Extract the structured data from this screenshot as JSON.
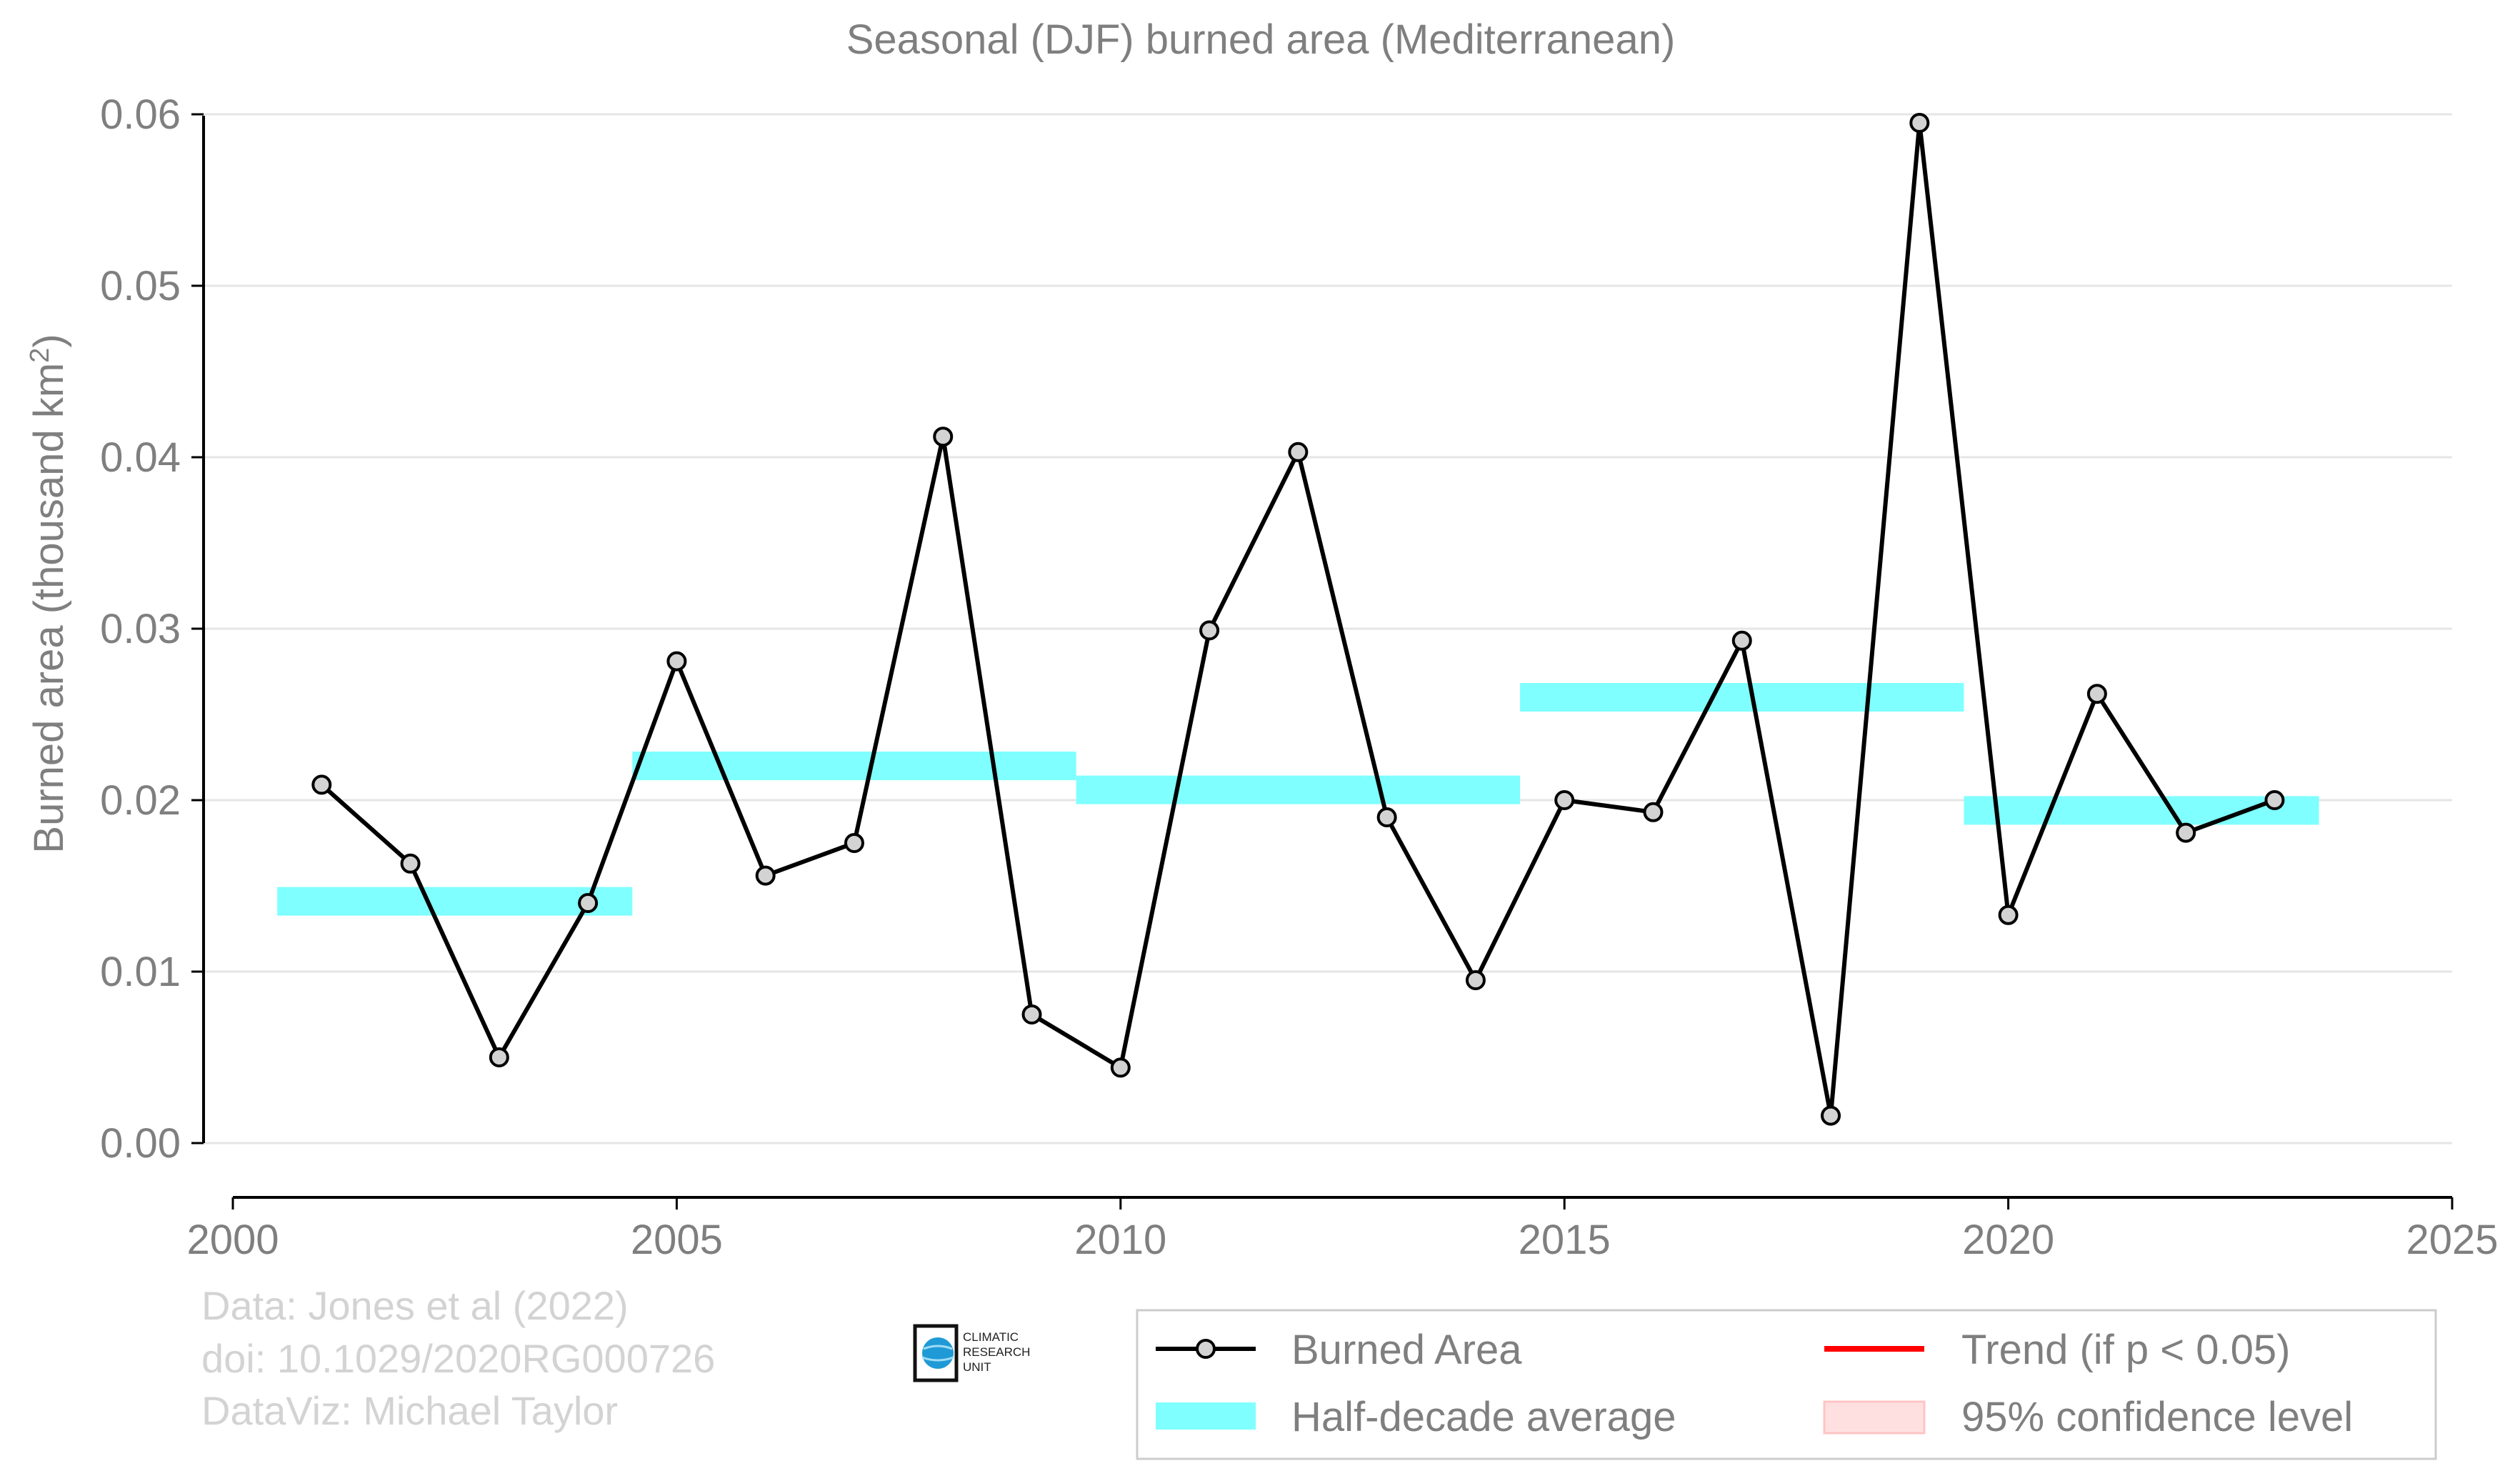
{
  "chart_data": {
    "type": "line",
    "title": "Seasonal (DJF) burned area (Mediterranean)",
    "ylabel": "Burned area (thousand km",
    "ylabel_sup": "2",
    "ylabel_close": ")",
    "xlabel": "",
    "xlim": [
      2000,
      2025
    ],
    "ylim": [
      -0.003,
      0.0605
    ],
    "x_ticks": [
      2000,
      2005,
      2010,
      2015,
      2020,
      2025
    ],
    "y_ticks": [
      0.0,
      0.01,
      0.02,
      0.03,
      0.04,
      0.05,
      0.06
    ],
    "x_tick_labels": [
      "2000",
      "2005",
      "2010",
      "2015",
      "2020",
      "2025"
    ],
    "y_tick_labels": [
      "0.00",
      "0.01",
      "0.02",
      "0.03",
      "0.04",
      "0.05",
      "0.06"
    ],
    "grid": "horizontal",
    "legend_position": "bottom-right",
    "colors": {
      "line": "#000000",
      "marker_fill": "#d3d3d3",
      "half_decade": "#7fffff",
      "trend": "#ff0000",
      "confidence": "#ffe0e0",
      "grid": "#e6e6e6",
      "axis_text": "#7f7f7f",
      "credit_text": "#d3d3d3",
      "logo_blue": "#1f9ad6"
    },
    "series": [
      {
        "name": "Burned Area",
        "x": [
          2001,
          2002,
          2003,
          2004,
          2005,
          2006,
          2007,
          2008,
          2009,
          2010,
          2011,
          2012,
          2013,
          2014,
          2015,
          2016,
          2017,
          2018,
          2019,
          2020,
          2021,
          2022,
          2023
        ],
        "y": [
          0.0209,
          0.0163,
          0.005,
          0.014,
          0.0281,
          0.0156,
          0.0175,
          0.0412,
          0.0075,
          0.0044,
          0.0299,
          0.0403,
          0.019,
          0.0095,
          0.02,
          0.0193,
          0.0293,
          0.0016,
          0.0595,
          0.0133,
          0.0262,
          0.0181,
          0.02
        ]
      }
    ],
    "half_decade_average": {
      "name": "Half-decade average",
      "segments": [
        {
          "start": 2000.5,
          "end": 2004.5,
          "value": 0.0141
        },
        {
          "start": 2004.5,
          "end": 2009.5,
          "value": 0.022
        },
        {
          "start": 2009.5,
          "end": 2014.5,
          "value": 0.0206
        },
        {
          "start": 2014.5,
          "end": 2019.5,
          "value": 0.026
        },
        {
          "start": 2019.5,
          "end": 2023.5,
          "value": 0.0194
        }
      ]
    },
    "legend": [
      {
        "label": "Burned Area",
        "kind": "line-marker"
      },
      {
        "label": "Trend (if p < 0.05)",
        "kind": "trend-line"
      },
      {
        "label": "Half-decade average",
        "kind": "band"
      },
      {
        "label": "95% confidence level",
        "kind": "confidence-patch"
      }
    ]
  },
  "credits": {
    "line1": "Data: Jones et al (2022)",
    "line2": "doi: 10.1029/2020RG000726",
    "line3": "DataViz: Michael Taylor"
  },
  "logo": {
    "line1": "CLIMATIC",
    "line2": "RESEARCH",
    "line3": "UNIT"
  }
}
